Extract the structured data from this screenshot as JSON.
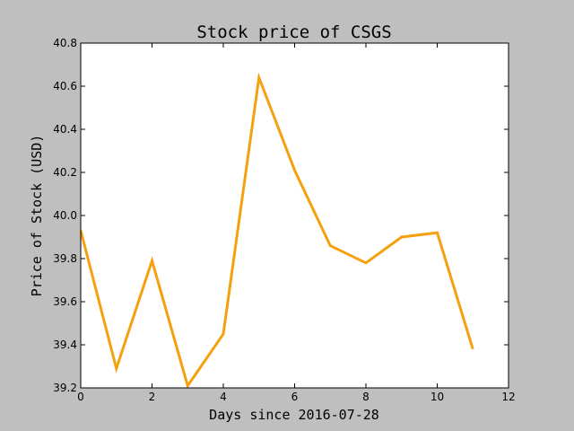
{
  "chart_data": {
    "type": "line",
    "title": "Stock price of CSGS",
    "xlabel": "Days since 2016-07-28",
    "ylabel": "Price of Stock (USD)",
    "xlim": [
      0,
      12
    ],
    "ylim": [
      39.2,
      40.8
    ],
    "xticks": [
      "0",
      "2",
      "4",
      "6",
      "8",
      "10",
      "12"
    ],
    "yticks": [
      "39.2",
      "39.4",
      "39.6",
      "39.8",
      "40.0",
      "40.2",
      "40.4",
      "40.6",
      "40.8"
    ],
    "grid": false,
    "series": [
      {
        "color": "#f5a00f",
        "x": [
          0,
          1,
          2,
          3,
          4,
          5,
          6,
          7,
          8,
          9,
          10,
          11
        ],
        "values": [
          39.93,
          39.29,
          39.79,
          39.21,
          39.45,
          40.64,
          40.21,
          39.86,
          39.78,
          39.9,
          39.92,
          39.38
        ]
      }
    ]
  }
}
